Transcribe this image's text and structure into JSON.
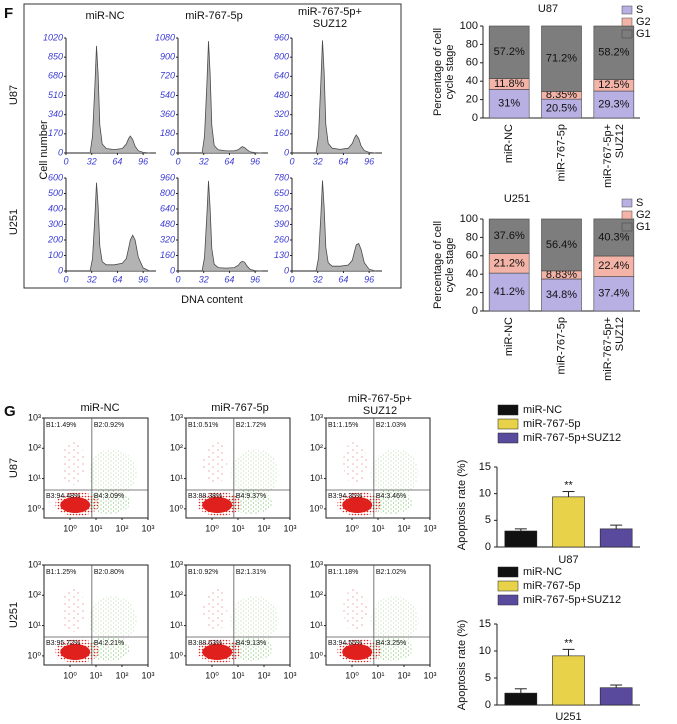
{
  "figure": {
    "panel_f_label": "F",
    "panel_g_label": "G",
    "cycle_columns": [
      "miR-NC",
      "miR-767-5p",
      "miR-767-5p+\nSUZ12"
    ],
    "cycle_rows": [
      "U87",
      "U251"
    ],
    "cycle_y_label": "Cell number",
    "cycle_x_label": "DNA content",
    "flow_columns": [
      "miR-NC",
      "miR-767-5p",
      "miR-767-5p+\nSUZ12"
    ],
    "flow_rows": [
      "U87",
      "U251"
    ]
  },
  "chart_data": [
    {
      "type": "area",
      "color": "#a6a6a6",
      "x": [
        30,
        33,
        36,
        38,
        40,
        42,
        45,
        50,
        60,
        70,
        75,
        78,
        80,
        83,
        86,
        90,
        96,
        104
      ],
      "values": [
        0,
        150,
        600,
        950,
        700,
        250,
        80,
        40,
        30,
        40,
        80,
        130,
        150,
        120,
        60,
        20,
        5,
        0
      ],
      "xlim": [
        0,
        112
      ],
      "ylim": [
        0,
        1020
      ],
      "xticks": [
        0,
        32,
        64,
        96
      ],
      "yticks": [
        0,
        170,
        340,
        510,
        680,
        850,
        1020
      ]
    },
    {
      "type": "area",
      "color": "#a6a6a6",
      "x": [
        30,
        33,
        36,
        38,
        40,
        42,
        45,
        50,
        60,
        70,
        75,
        78,
        80,
        83,
        86,
        90,
        96,
        104
      ],
      "values": [
        0,
        160,
        650,
        1050,
        750,
        260,
        70,
        30,
        20,
        20,
        30,
        50,
        60,
        50,
        30,
        10,
        3,
        0
      ],
      "xlim": [
        0,
        112
      ],
      "ylim": [
        0,
        1080
      ],
      "xticks": [
        0,
        32,
        64,
        96
      ],
      "yticks": [
        0,
        180,
        360,
        540,
        720,
        900,
        1080
      ]
    },
    {
      "type": "area",
      "color": "#a6a6a6",
      "x": [
        30,
        33,
        36,
        38,
        40,
        42,
        45,
        50,
        60,
        70,
        75,
        78,
        80,
        83,
        86,
        90,
        96,
        104
      ],
      "values": [
        0,
        140,
        600,
        940,
        680,
        240,
        80,
        40,
        30,
        40,
        80,
        130,
        150,
        120,
        60,
        20,
        5,
        0
      ],
      "xlim": [
        0,
        112
      ],
      "ylim": [
        0,
        960
      ],
      "xticks": [
        0,
        32,
        64,
        96
      ],
      "yticks": [
        0,
        160,
        320,
        480,
        640,
        800,
        960
      ]
    },
    {
      "type": "area",
      "color": "#a6a6a6",
      "x": [
        30,
        33,
        36,
        38,
        40,
        42,
        45,
        50,
        60,
        70,
        75,
        78,
        80,
        83,
        86,
        90,
        96,
        104
      ],
      "values": [
        0,
        80,
        350,
        570,
        420,
        160,
        60,
        40,
        40,
        50,
        80,
        150,
        200,
        230,
        200,
        90,
        20,
        0
      ],
      "xlim": [
        0,
        112
      ],
      "ylim": [
        0,
        600
      ],
      "xticks": [
        0,
        32,
        64,
        96
      ],
      "yticks": [
        0,
        100,
        200,
        300,
        400,
        500,
        600
      ]
    },
    {
      "type": "area",
      "color": "#a6a6a6",
      "x": [
        30,
        33,
        36,
        38,
        40,
        42,
        45,
        50,
        60,
        70,
        75,
        78,
        80,
        83,
        86,
        90,
        96,
        104
      ],
      "values": [
        0,
        140,
        580,
        930,
        650,
        230,
        70,
        35,
        30,
        35,
        60,
        90,
        100,
        90,
        50,
        15,
        4,
        0
      ],
      "xlim": [
        0,
        112
      ],
      "ylim": [
        0,
        960
      ],
      "xticks": [
        0,
        32,
        64,
        96
      ],
      "yticks": [
        0,
        160,
        320,
        480,
        640,
        800,
        960
      ]
    },
    {
      "type": "area",
      "color": "#a6a6a6",
      "x": [
        30,
        33,
        36,
        38,
        40,
        42,
        45,
        50,
        60,
        70,
        75,
        78,
        80,
        83,
        86,
        90,
        96,
        104
      ],
      "values": [
        0,
        110,
        470,
        760,
        540,
        200,
        70,
        40,
        40,
        50,
        90,
        170,
        220,
        230,
        180,
        70,
        15,
        0
      ],
      "xlim": [
        0,
        112
      ],
      "ylim": [
        0,
        780
      ],
      "xticks": [
        0,
        32,
        64,
        96
      ],
      "yticks": [
        0,
        130,
        260,
        390,
        520,
        650,
        780
      ]
    },
    {
      "type": "stacked_bar",
      "title": "U87",
      "y_label": "Percentage of cell\ncycle stage",
      "legend": "top-right",
      "categories": [
        "miR-NC",
        "miR-767-5p",
        "miR-767-5p+\nSUZ12"
      ],
      "series": [
        {
          "name": "S",
          "color": "#b8afe3",
          "values": [
            31,
            20.5,
            29.3
          ],
          "value_labels": [
            "31%",
            "20.5%",
            "29.3%"
          ]
        },
        {
          "name": "G2",
          "color": "#f3b4a7",
          "values": [
            11.8,
            8.35,
            12.5
          ],
          "value_labels": [
            "11.8%",
            "8.35%",
            "12.5%"
          ]
        },
        {
          "name": "G1",
          "color": "#7d7d7d",
          "values": [
            57.2,
            71.2,
            58.2
          ],
          "value_labels": [
            "57.2%",
            "71.2%",
            "58.2%"
          ]
        }
      ],
      "ylim": [
        0,
        100
      ],
      "yticks": [
        0,
        20,
        40,
        60,
        80,
        100
      ]
    },
    {
      "type": "stacked_bar",
      "title": "U251",
      "y_label": "Percentage of cell\ncycle stage",
      "legend": "top-right",
      "categories": [
        "miR-NC",
        "miR-767-5p",
        "miR-767-5p+\nSUZ12"
      ],
      "series": [
        {
          "name": "S",
          "color": "#b8afe3",
          "values": [
            41.2,
            34.8,
            37.4
          ],
          "value_labels": [
            "41.2%",
            "34.8%",
            "37.4%"
          ]
        },
        {
          "name": "G2",
          "color": "#f3b4a7",
          "values": [
            21.2,
            8.83,
            22.4
          ],
          "value_labels": [
            "21.2%",
            "8.83%",
            "22.4%"
          ]
        },
        {
          "name": "G1",
          "color": "#7d7d7d",
          "values": [
            37.6,
            56.4,
            40.3
          ],
          "value_labels": [
            "37.6%",
            "56.4%",
            "40.3%"
          ]
        }
      ],
      "ylim": [
        0,
        100
      ],
      "yticks": [
        0,
        20,
        40,
        60,
        80,
        100
      ]
    },
    {
      "type": "flow",
      "log_scale": true,
      "xlim": [
        0.1,
        1000
      ],
      "ylim": [
        0.5,
        1000
      ],
      "xticks": [
        {
          "value": 1,
          "label": "10⁰"
        },
        {
          "value": 10,
          "label": "10¹"
        },
        {
          "value": 100,
          "label": "10²"
        },
        {
          "value": 1000,
          "label": "10³"
        }
      ],
      "yticks": [
        {
          "value": 1,
          "label": "10⁰"
        },
        {
          "value": 10,
          "label": "10¹"
        },
        {
          "value": 100,
          "label": "10²"
        },
        {
          "value": 1000,
          "label": "10³"
        }
      ],
      "quadrants": [
        "B1:1.49%",
        "B2:0.92%",
        "B3:94.48%",
        "B4:3.09%"
      ]
    },
    {
      "type": "flow",
      "log_scale": true,
      "xlim": [
        0.1,
        1000
      ],
      "ylim": [
        0.5,
        1000
      ],
      "xticks": [
        {
          "value": 1,
          "label": "10⁰"
        },
        {
          "value": 10,
          "label": "10¹"
        },
        {
          "value": 100,
          "label": "10²"
        },
        {
          "value": 1000,
          "label": "10³"
        }
      ],
      "yticks": [
        {
          "value": 1,
          "label": "10⁰"
        },
        {
          "value": 10,
          "label": "10¹"
        },
        {
          "value": 100,
          "label": "10²"
        },
        {
          "value": 1000,
          "label": "10³"
        }
      ],
      "quadrants": [
        "B1:0.51%",
        "B2:1.72%",
        "B3:88.38%",
        "B4:9.37%"
      ]
    },
    {
      "type": "flow",
      "log_scale": true,
      "xlim": [
        0.1,
        1000
      ],
      "ylim": [
        0.5,
        1000
      ],
      "xticks": [
        {
          "value": 1,
          "label": "10⁰"
        },
        {
          "value": 10,
          "label": "10¹"
        },
        {
          "value": 100,
          "label": "10²"
        },
        {
          "value": 1000,
          "label": "10³"
        }
      ],
      "yticks": [
        {
          "value": 1,
          "label": "10⁰"
        },
        {
          "value": 10,
          "label": "10¹"
        },
        {
          "value": 100,
          "label": "10²"
        },
        {
          "value": 1000,
          "label": "10³"
        }
      ],
      "quadrants": [
        "B1:1.15%",
        "B2:1.03%",
        "B3:94.35%",
        "B4:3.46%"
      ]
    },
    {
      "type": "flow",
      "log_scale": true,
      "xlim": [
        0.1,
        1000
      ],
      "ylim": [
        0.5,
        1000
      ],
      "xticks": [
        {
          "value": 1,
          "label": "10⁰"
        },
        {
          "value": 10,
          "label": "10¹"
        },
        {
          "value": 100,
          "label": "10²"
        },
        {
          "value": 1000,
          "label": "10³"
        }
      ],
      "yticks": [
        {
          "value": 1,
          "label": "10⁰"
        },
        {
          "value": 10,
          "label": "10¹"
        },
        {
          "value": 100,
          "label": "10²"
        },
        {
          "value": 1000,
          "label": "10³"
        }
      ],
      "quadrants": [
        "B1:1.25%",
        "B2:0.80%",
        "B3:95.72%",
        "B4:2.21%"
      ]
    },
    {
      "type": "flow",
      "log_scale": true,
      "xlim": [
        0.1,
        1000
      ],
      "ylim": [
        0.5,
        1000
      ],
      "xticks": [
        {
          "value": 1,
          "label": "10⁰"
        },
        {
          "value": 10,
          "label": "10¹"
        },
        {
          "value": 100,
          "label": "10²"
        },
        {
          "value": 1000,
          "label": "10³"
        }
      ],
      "yticks": [
        {
          "value": 1,
          "label": "10⁰"
        },
        {
          "value": 10,
          "label": "10¹"
        },
        {
          "value": 100,
          "label": "10²"
        },
        {
          "value": 1000,
          "label": "10³"
        }
      ],
      "quadrants": [
        "B1:0.92%",
        "B2:1.31%",
        "B3:88.63%",
        "B4:9.13%"
      ]
    },
    {
      "type": "flow",
      "log_scale": true,
      "xlim": [
        0.1,
        1000
      ],
      "ylim": [
        0.5,
        1000
      ],
      "xticks": [
        {
          "value": 1,
          "label": "10⁰"
        },
        {
          "value": 10,
          "label": "10¹"
        },
        {
          "value": 100,
          "label": "10²"
        },
        {
          "value": 1000,
          "label": "10³"
        }
      ],
      "yticks": [
        {
          "value": 1,
          "label": "10⁰"
        },
        {
          "value": 10,
          "label": "10¹"
        },
        {
          "value": 100,
          "label": "10²"
        },
        {
          "value": 1000,
          "label": "10³"
        }
      ],
      "quadrants": [
        "B1:1.18%",
        "B2:1.02%",
        "B3:94.55%",
        "B4:3.25%"
      ]
    },
    {
      "type": "bar",
      "x_label": "U87",
      "y_label": "Apoptosis rate (%)",
      "legend": "top",
      "series": [
        {
          "name": "miR-NC",
          "color": "#111111",
          "values": [
            3.0
          ],
          "errors": [
            0.4
          ]
        },
        {
          "name": "miR-767-5p",
          "color": "#e8d24a",
          "values": [
            9.4
          ],
          "errors": [
            1.0
          ],
          "annotation": "**"
        },
        {
          "name": "miR-767-5p+SUZ12",
          "color": "#5a4a9e",
          "values": [
            3.4
          ],
          "errors": [
            0.7
          ]
        }
      ],
      "ylim": [
        0,
        15
      ],
      "yticks": [
        0,
        5,
        10,
        15
      ]
    },
    {
      "type": "bar",
      "x_label": "U251",
      "y_label": "Apoptosis rate (%)",
      "legend": "top",
      "series": [
        {
          "name": "miR-NC",
          "color": "#111111",
          "values": [
            2.2
          ],
          "errors": [
            0.8
          ]
        },
        {
          "name": "miR-767-5p",
          "color": "#e8d24a",
          "values": [
            9.1
          ],
          "errors": [
            1.2
          ],
          "annotation": "**"
        },
        {
          "name": "miR-767-5p+SUZ12",
          "color": "#5a4a9e",
          "values": [
            3.2
          ],
          "errors": [
            0.5
          ]
        }
      ],
      "ylim": [
        0,
        15
      ],
      "yticks": [
        0,
        5,
        10,
        15
      ]
    }
  ]
}
